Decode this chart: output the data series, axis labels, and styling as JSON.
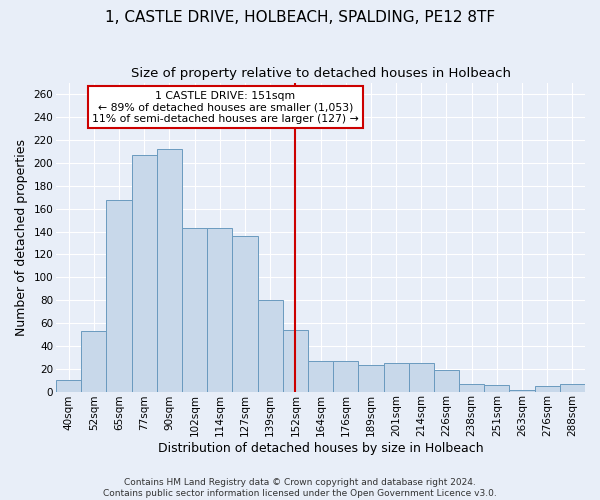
{
  "title": "1, CASTLE DRIVE, HOLBEACH, SPALDING, PE12 8TF",
  "subtitle": "Size of property relative to detached houses in Holbeach",
  "xlabel": "Distribution of detached houses by size in Holbeach",
  "ylabel": "Number of detached properties",
  "footer1": "Contains HM Land Registry data © Crown copyright and database right 2024.",
  "footer2": "Contains public sector information licensed under the Open Government Licence v3.0.",
  "categories": [
    "40sqm",
    "52sqm",
    "65sqm",
    "77sqm",
    "90sqm",
    "102sqm",
    "114sqm",
    "127sqm",
    "139sqm",
    "152sqm",
    "164sqm",
    "176sqm",
    "189sqm",
    "201sqm",
    "214sqm",
    "226sqm",
    "238sqm",
    "251sqm",
    "263sqm",
    "276sqm",
    "288sqm"
  ],
  "values": [
    10,
    53,
    168,
    207,
    212,
    143,
    143,
    136,
    80,
    54,
    27,
    27,
    23,
    25,
    25,
    19,
    7,
    6,
    1,
    5,
    7
  ],
  "bar_color": "#c8d8ea",
  "bar_edge_color": "#6a9abf",
  "highlight_bin": 9,
  "annotation_title": "1 CASTLE DRIVE: 151sqm",
  "annotation_line1": "← 89% of detached houses are smaller (1,053)",
  "annotation_line2": "11% of semi-detached houses are larger (127) →",
  "annotation_box_color": "#ffffff",
  "annotation_box_edge": "#cc0000",
  "ylim": [
    0,
    270
  ],
  "yticks": [
    0,
    20,
    40,
    60,
    80,
    100,
    120,
    140,
    160,
    180,
    200,
    220,
    240,
    260
  ],
  "bg_color": "#e8eef8",
  "plot_bg_color": "#e8eef8",
  "grid_color": "#ffffff",
  "title_fontsize": 11,
  "subtitle_fontsize": 9.5,
  "tick_fontsize": 7.5,
  "ylabel_fontsize": 9,
  "xlabel_fontsize": 9,
  "footer_fontsize": 6.5
}
